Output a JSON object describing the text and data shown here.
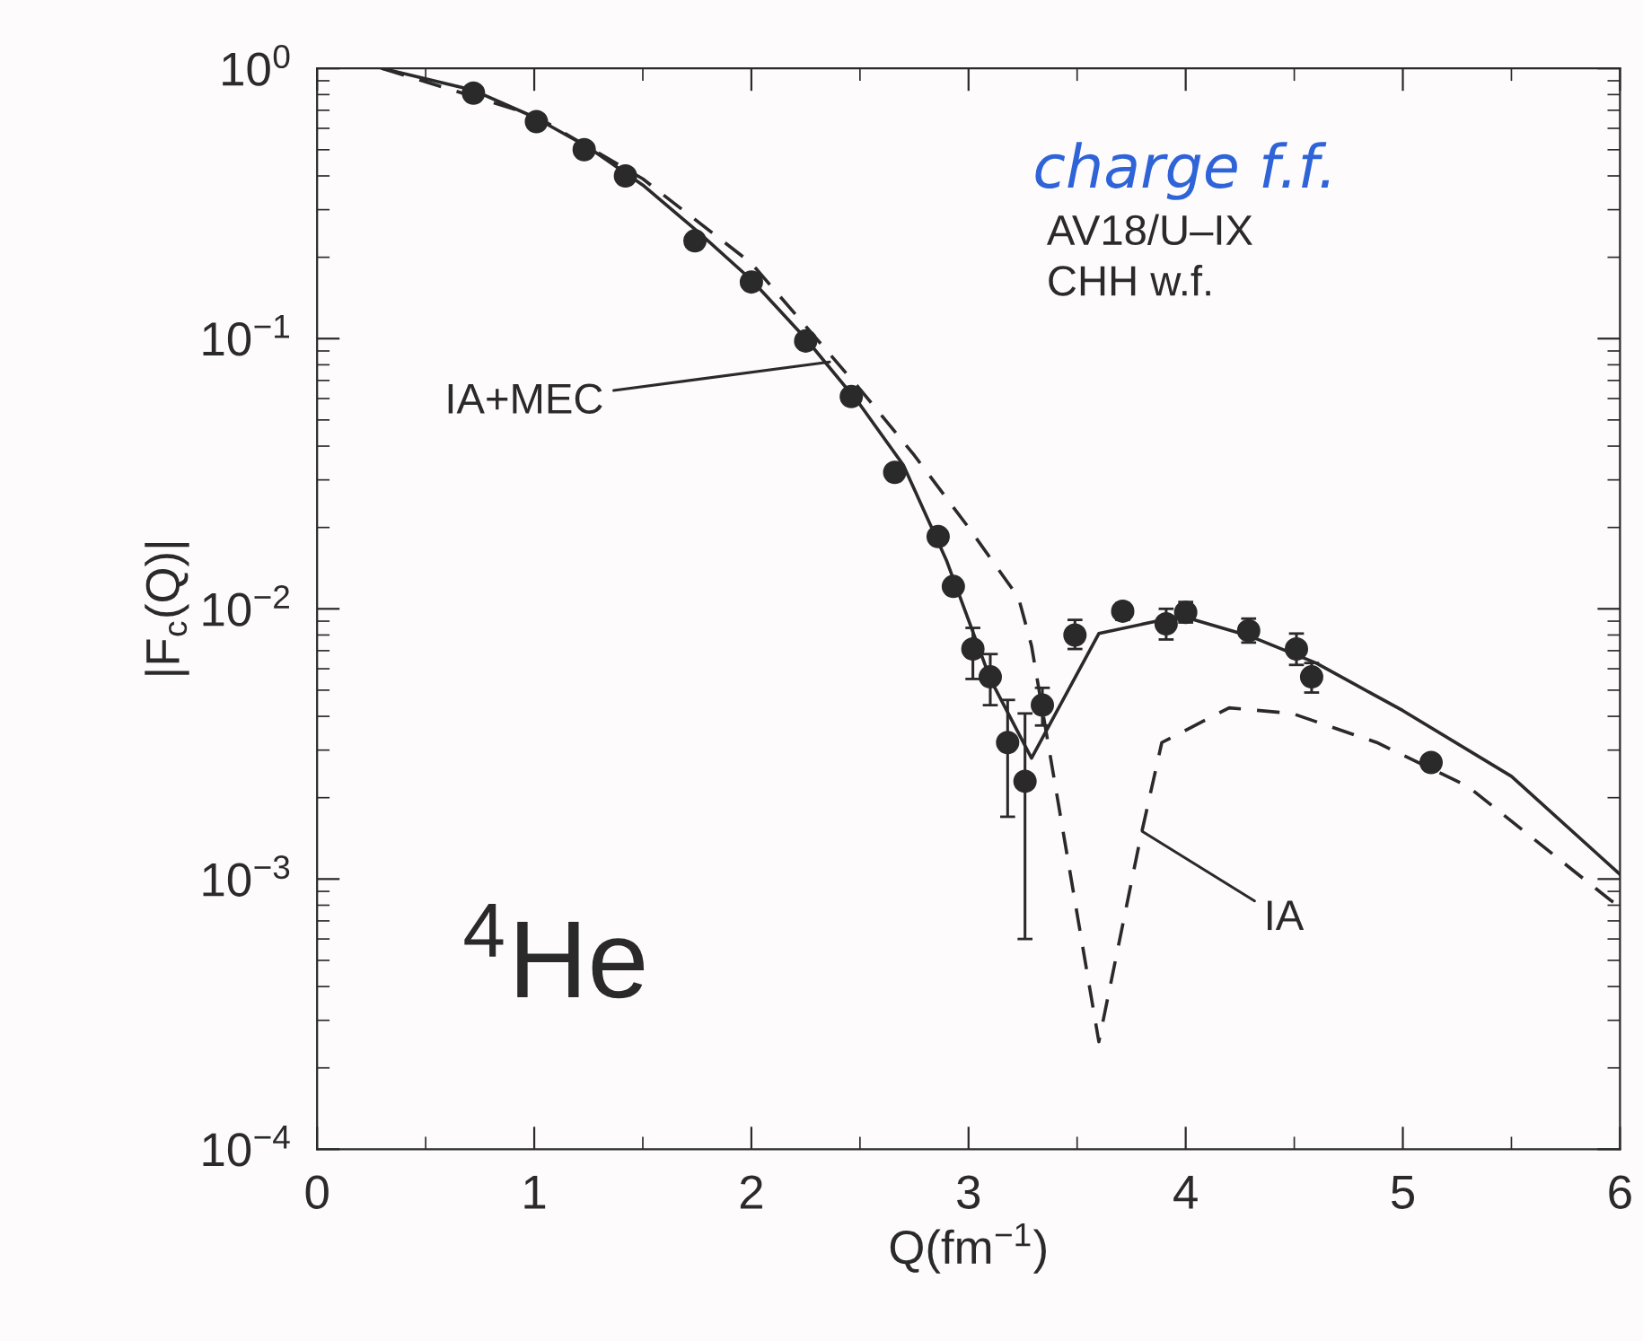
{
  "chart_data": {
    "type": "line",
    "xlabel": "Q(fm$^{−1}$)",
    "ylabel": "|F$_{c}$(Q)|",
    "log": "y",
    "grid": false,
    "legend": false,
    "xlim": [
      0,
      6
    ],
    "xticks": [
      0,
      1,
      2,
      3,
      4,
      5,
      6
    ],
    "ylim": [
      0.0001,
      1
    ],
    "yticks": [
      {
        "value": 0.0001,
        "label": "10$^{−4}$"
      },
      {
        "value": 0.001,
        "label": "10$^{−3}$"
      },
      {
        "value": 0.01,
        "label": "10$^{−2}$"
      },
      {
        "value": 0.1,
        "label": "10$^{−1}$"
      },
      {
        "value": 1,
        "label": "10$^{0}$"
      }
    ],
    "series": [
      {
        "type": "scatter",
        "color": "#2a2a2a",
        "marker": "circle",
        "x": [
          0.72,
          1.01,
          1.23,
          1.42,
          1.74,
          2.0,
          2.25,
          2.46,
          2.66,
          2.86,
          2.93,
          3.02,
          3.1,
          3.18,
          3.26,
          3.34,
          3.49,
          3.71,
          3.91,
          4.0,
          4.29,
          4.51,
          4.58,
          5.13
        ],
        "values": [
          0.81,
          0.635,
          0.5,
          0.4,
          0.23,
          0.162,
          0.098,
          0.061,
          0.032,
          0.0185,
          0.0121,
          0.0071,
          0.0056,
          0.0032,
          0.0023,
          0.0044,
          0.008,
          0.0098,
          0.0088,
          0.0097,
          0.0083,
          0.0071,
          0.0056,
          0.0027
        ],
        "errors": [
          null,
          null,
          null,
          null,
          null,
          null,
          null,
          null,
          null,
          null,
          null,
          [
            0.0055,
            0.0085
          ],
          [
            0.0044,
            0.0068
          ],
          [
            0.0017,
            0.0046
          ],
          [
            0.0006,
            0.0041
          ],
          [
            0.0037,
            0.0051
          ],
          [
            0.0071,
            0.0091
          ],
          [
            0.0091,
            0.0105
          ],
          [
            0.0077,
            0.01
          ],
          [
            0.0089,
            0.0106
          ],
          [
            0.0075,
            0.0092
          ],
          [
            0.0062,
            0.0081
          ],
          [
            0.0049,
            0.0063
          ],
          null
        ]
      },
      {
        "color": "#2a2a2a",
        "line_style": "solid",
        "x": [
          0.3,
          0.72,
          1.0,
          1.25,
          1.5,
          1.75,
          2.0,
          2.25,
          2.5,
          2.7,
          2.9,
          3.1,
          3.29,
          3.6,
          3.92,
          4.0,
          4.3,
          4.6,
          5.0,
          5.5,
          6.0
        ],
        "values": [
          1.0,
          0.83,
          0.66,
          0.51,
          0.37,
          0.25,
          0.165,
          0.1,
          0.057,
          0.034,
          0.015,
          0.0055,
          0.0028,
          0.0081,
          0.0092,
          0.0093,
          0.0079,
          0.0063,
          0.0042,
          0.0024,
          0.00104
        ]
      },
      {
        "color": "#2a2a2a",
        "line_style": "dashed",
        "x": [
          0.3,
          1.0,
          1.5,
          2.0,
          2.5,
          2.75,
          3.0,
          3.23,
          3.29,
          3.6,
          3.79,
          3.89,
          4.2,
          4.49,
          4.88,
          5.3,
          5.96,
          6.0
        ],
        "values": [
          1.0,
          0.67,
          0.39,
          0.19,
          0.065,
          0.037,
          0.02,
          0.011,
          0.0073,
          0.00025,
          0.0014,
          0.0032,
          0.0043,
          0.0041,
          0.0032,
          0.0022,
          0.00083,
          0.0008
        ]
      }
    ],
    "annotations": [
      "charge f.f.",
      "AV18/U–IX",
      "CHH w.f.",
      "$^{4}$He",
      {
        "text": "IA+MEC",
        "x": 2.36,
        "y": 0.082
      },
      {
        "text": "IA",
        "x": 3.8,
        "y": 0.0015
      }
    ]
  }
}
